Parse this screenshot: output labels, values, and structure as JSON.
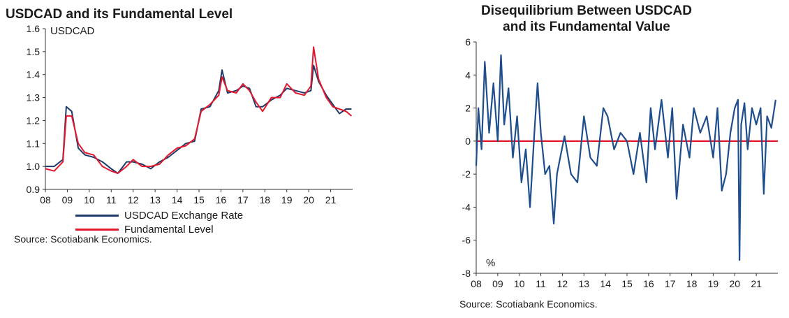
{
  "chart_data": [
    {
      "type": "line",
      "title": "USDCAD and its Fundamental Level",
      "ylabel": "USDCAD",
      "xlabel": "",
      "ylim": [
        0.9,
        1.6
      ],
      "yticks": [
        "0.9",
        "1.0",
        "1.1",
        "1.2",
        "1.3",
        "1.4",
        "1.5",
        "1.6"
      ],
      "xlim": [
        2008.0,
        2022.0
      ],
      "xticks": [
        "08",
        "09",
        "10",
        "11",
        "12",
        "13",
        "14",
        "15",
        "16",
        "17",
        "18",
        "19",
        "20",
        "21"
      ],
      "grid": false,
      "legend_position": "bottom",
      "source": "Source: Scotiabank Economics.",
      "series": [
        {
          "name": "USDCAD Exchange Rate",
          "color": "#1f3a6b",
          "x": [
            2008.0,
            2008.4,
            2008.8,
            2008.95,
            2009.2,
            2009.5,
            2009.8,
            2010.2,
            2010.6,
            2011.0,
            2011.3,
            2011.7,
            2012.0,
            2012.4,
            2012.8,
            2013.2,
            2013.6,
            2014.0,
            2014.4,
            2014.8,
            2015.1,
            2015.5,
            2015.9,
            2016.05,
            2016.3,
            2016.7,
            2017.0,
            2017.3,
            2017.6,
            2017.9,
            2018.3,
            2018.7,
            2019.0,
            2019.4,
            2019.8,
            2020.1,
            2020.22,
            2020.45,
            2020.8,
            2021.1,
            2021.4,
            2021.7,
            2021.95
          ],
          "values": [
            1.0,
            1.0,
            1.03,
            1.26,
            1.24,
            1.08,
            1.05,
            1.04,
            1.02,
            0.99,
            0.97,
            1.02,
            1.02,
            1.01,
            0.99,
            1.02,
            1.04,
            1.07,
            1.1,
            1.11,
            1.25,
            1.26,
            1.33,
            1.42,
            1.32,
            1.33,
            1.35,
            1.34,
            1.26,
            1.26,
            1.29,
            1.31,
            1.34,
            1.33,
            1.32,
            1.33,
            1.44,
            1.37,
            1.31,
            1.27,
            1.23,
            1.25,
            1.25
          ]
        },
        {
          "name": "Fundamental Level",
          "color": "#e3182d",
          "x": [
            2008.0,
            2008.4,
            2008.8,
            2008.95,
            2009.2,
            2009.5,
            2009.8,
            2010.2,
            2010.6,
            2011.0,
            2011.3,
            2011.7,
            2012.0,
            2012.4,
            2012.8,
            2013.2,
            2013.6,
            2014.0,
            2014.4,
            2014.8,
            2015.1,
            2015.5,
            2015.9,
            2016.05,
            2016.3,
            2016.7,
            2017.0,
            2017.3,
            2017.6,
            2017.9,
            2018.3,
            2018.7,
            2019.0,
            2019.4,
            2019.8,
            2020.1,
            2020.22,
            2020.45,
            2020.8,
            2021.1,
            2021.4,
            2021.7,
            2021.95
          ],
          "values": [
            0.99,
            0.98,
            1.02,
            1.22,
            1.22,
            1.1,
            1.06,
            1.05,
            1.0,
            0.98,
            0.97,
            1.0,
            1.03,
            1.0,
            1.0,
            1.01,
            1.05,
            1.08,
            1.09,
            1.12,
            1.24,
            1.27,
            1.31,
            1.39,
            1.33,
            1.32,
            1.36,
            1.33,
            1.28,
            1.24,
            1.3,
            1.3,
            1.36,
            1.32,
            1.31,
            1.35,
            1.52,
            1.38,
            1.3,
            1.26,
            1.25,
            1.24,
            1.22
          ]
        }
      ]
    },
    {
      "type": "line",
      "title": "Disequilibrium Between USDCAD and its Fundamental Value",
      "title_lines": [
        "Disequilibrium Between USDCAD",
        "and its Fundamental Value"
      ],
      "xlabel": "",
      "ylabel": "%",
      "ylim": [
        -8,
        6
      ],
      "yticks": [
        "-8",
        "-6",
        "-4",
        "-2",
        "0",
        "2",
        "4",
        "6"
      ],
      "xlim": [
        2008.0,
        2022.0
      ],
      "xticks": [
        "08",
        "09",
        "10",
        "11",
        "12",
        "13",
        "14",
        "15",
        "16",
        "17",
        "18",
        "19",
        "20",
        "21"
      ],
      "grid": false,
      "source": "Source: Scotiabank Economics.",
      "zero_line_color": "#e3182d",
      "series": [
        {
          "name": "Disequilibrium",
          "color": "#1f4e8c",
          "x": [
            2008.0,
            2008.1,
            2008.25,
            2008.4,
            2008.6,
            2008.8,
            2009.0,
            2009.15,
            2009.3,
            2009.5,
            2009.7,
            2009.9,
            2010.1,
            2010.3,
            2010.5,
            2010.7,
            2010.85,
            2011.0,
            2011.2,
            2011.4,
            2011.6,
            2011.75,
            2011.9,
            2012.1,
            2012.4,
            2012.7,
            2013.0,
            2013.3,
            2013.6,
            2013.9,
            2014.1,
            2014.4,
            2014.7,
            2015.0,
            2015.3,
            2015.6,
            2015.9,
            2016.1,
            2016.3,
            2016.6,
            2016.9,
            2017.1,
            2017.3,
            2017.6,
            2017.9,
            2018.1,
            2018.4,
            2018.7,
            2019.0,
            2019.2,
            2019.4,
            2019.6,
            2019.8,
            2020.0,
            2020.15,
            2020.22,
            2020.3,
            2020.45,
            2020.6,
            2020.8,
            2021.0,
            2021.2,
            2021.35,
            2021.5,
            2021.7,
            2021.9
          ],
          "values": [
            -1.5,
            2.0,
            -0.5,
            4.8,
            0.5,
            3.5,
            0.0,
            5.2,
            1.0,
            3.2,
            -1.0,
            1.5,
            -2.5,
            -0.5,
            -4.0,
            0.5,
            3.5,
            0.5,
            -2.0,
            -1.5,
            -5.0,
            -2.0,
            -1.0,
            0.3,
            -2.0,
            -2.5,
            1.5,
            -1.0,
            -1.5,
            2.0,
            1.5,
            -0.5,
            0.5,
            0.0,
            -2.0,
            0.5,
            -2.5,
            2.0,
            -0.5,
            2.5,
            -1.0,
            2.0,
            -3.5,
            1.0,
            -1.0,
            2.0,
            0.5,
            1.5,
            -1.0,
            2.0,
            -3.0,
            -2.0,
            0.5,
            2.0,
            2.5,
            -7.2,
            1.0,
            2.3,
            -0.5,
            2.0,
            1.0,
            2.0,
            -3.2,
            1.5,
            0.8,
            2.5
          ]
        }
      ]
    }
  ]
}
